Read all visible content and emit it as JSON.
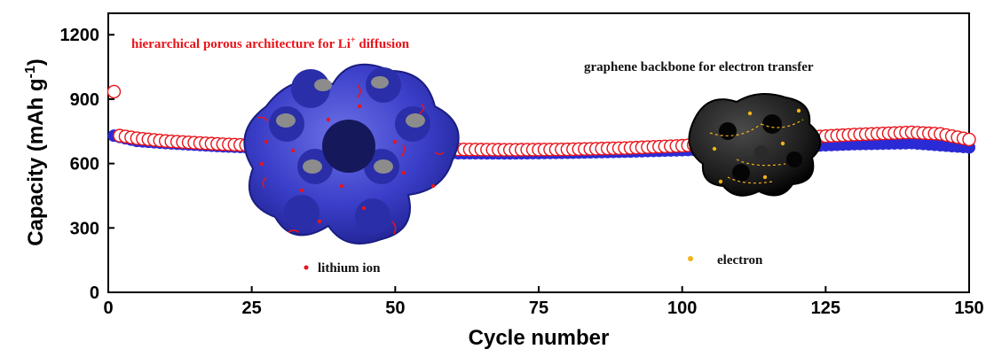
{
  "chart_data": {
    "type": "scatter",
    "xlabel": "Cycle number",
    "ylabel_main": "Capacity (mAh g",
    "ylabel_sup": "-1",
    "ylabel_close": ")",
    "xlim": [
      0,
      150
    ],
    "ylim": [
      0,
      1300
    ],
    "xticks": [
      0,
      25,
      50,
      75,
      100,
      125,
      150
    ],
    "yticks": [
      0,
      300,
      600,
      900,
      1200
    ],
    "x_tick_labels": [
      "0",
      "25",
      "50",
      "75",
      "100",
      "125",
      "150"
    ],
    "y_tick_labels": [
      "0",
      "300",
      "600",
      "900",
      "1200"
    ],
    "grid": false,
    "series": [
      {
        "marker": "open-circle",
        "color": "#e8141a",
        "x_start": 1,
        "x_end": 150,
        "anchors": [
          [
            1,
            935
          ],
          [
            2,
            730
          ],
          [
            5,
            718
          ],
          [
            10,
            705
          ],
          [
            15,
            697
          ],
          [
            20,
            690
          ],
          [
            25,
            685
          ],
          [
            30,
            680
          ],
          [
            40,
            674
          ],
          [
            50,
            670
          ],
          [
            60,
            666
          ],
          [
            70,
            664
          ],
          [
            80,
            666
          ],
          [
            90,
            672
          ],
          [
            100,
            683
          ],
          [
            110,
            700
          ],
          [
            120,
            720
          ],
          [
            130,
            735
          ],
          [
            140,
            745
          ],
          [
            145,
            738
          ],
          [
            150,
            712
          ]
        ]
      },
      {
        "marker": "filled-circle",
        "color": "#2b2bd6",
        "x_start": 1,
        "x_end": 150,
        "anchors": [
          [
            1,
            730
          ],
          [
            5,
            705
          ],
          [
            10,
            695
          ],
          [
            20,
            680
          ],
          [
            30,
            670
          ],
          [
            40,
            660
          ],
          [
            50,
            652
          ],
          [
            60,
            648
          ],
          [
            70,
            647
          ],
          [
            80,
            650
          ],
          [
            90,
            655
          ],
          [
            100,
            662
          ],
          [
            110,
            670
          ],
          [
            120,
            680
          ],
          [
            130,
            690
          ],
          [
            140,
            695
          ],
          [
            150,
            675
          ]
        ]
      }
    ],
    "annotations": {
      "porous_title": "hierarchical porous architecture for Li",
      "porous_title_sup": "+",
      "porous_title_end": " diffusion",
      "graphene_title": "graphene backbone for electron transfer",
      "legend_lithium": "lithium ion",
      "legend_electron": "electron"
    },
    "colors": {
      "lithium_ion": "#e8141a",
      "electron": "#f3b21a",
      "porous_structure": "#3a3ec8",
      "graphene_structure": "#1c1c1c"
    }
  }
}
